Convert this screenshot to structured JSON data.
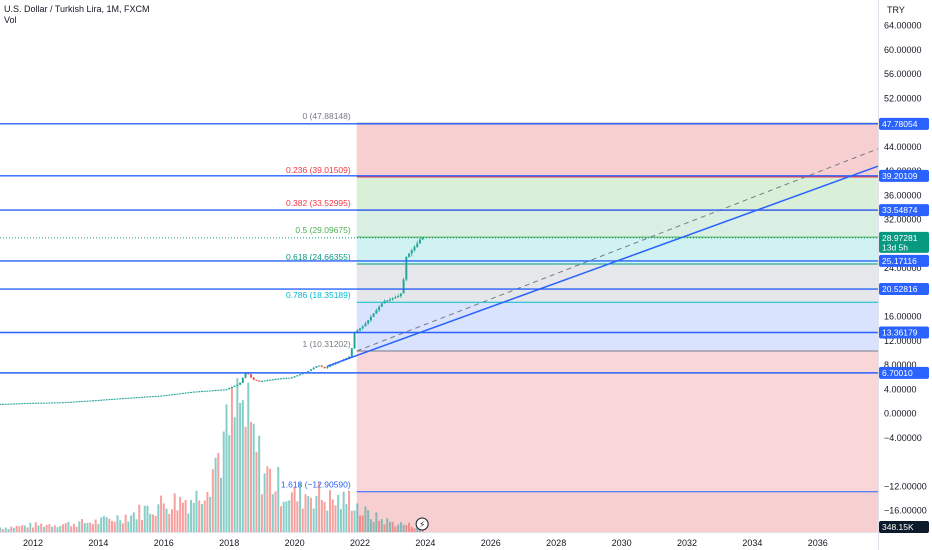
{
  "legend": {
    "title": "U.S. Dollar / Turkish Lira, 1M, FXCM",
    "volume_label": "Vol"
  },
  "currency_label": "TRY",
  "colors": {
    "up": "#26a69a",
    "down": "#ef5350",
    "hline": "#2962ff",
    "trend": "#2962ff",
    "dashed": "#787b86",
    "current_tag": "#089981",
    "volume_tag": "#0d1a2b"
  },
  "chart_data": {
    "type": "candlestick",
    "title": "U.S. Dollar / Turkish Lira, 1M, FXCM",
    "xlabel": "",
    "ylabel": "",
    "ylim": [
      -20,
      66
    ],
    "xlim": [
      2011.0,
      2038.0
    ],
    "grid": false,
    "y_ticks": [
      "64.00000",
      "60.00000",
      "56.00000",
      "52.00000",
      "44.00000",
      "40.00000",
      "36.00000",
      "32.00000",
      "24.00000",
      "16.00000",
      "12.00000",
      "8.00000",
      "4.00000",
      "0.00000",
      "−4.00000",
      "−12.00000",
      "−16.00000"
    ],
    "x_ticks": [
      "2012",
      "2014",
      "2016",
      "2018",
      "2020",
      "2022",
      "2024",
      "2026",
      "2028",
      "2030",
      "2032",
      "2034",
      "2036"
    ],
    "price_series": [
      [
        2011.0,
        1.55
      ],
      [
        2012.0,
        1.75
      ],
      [
        2013.0,
        1.85
      ],
      [
        2014.0,
        2.2
      ],
      [
        2015.0,
        2.6
      ],
      [
        2016.0,
        2.95
      ],
      [
        2017.0,
        3.6
      ],
      [
        2018.0,
        4.0
      ],
      [
        2018.4,
        4.9
      ],
      [
        2018.6,
        6.9
      ],
      [
        2018.8,
        5.6
      ],
      [
        2019.0,
        5.3
      ],
      [
        2019.5,
        5.7
      ],
      [
        2020.0,
        5.95
      ],
      [
        2020.5,
        7.0
      ],
      [
        2020.8,
        8.0
      ],
      [
        2021.0,
        7.5
      ],
      [
        2021.5,
        8.7
      ],
      [
        2021.8,
        9.5
      ],
      [
        2021.9,
        13.3
      ],
      [
        2022.2,
        14.5
      ],
      [
        2022.5,
        16.5
      ],
      [
        2022.8,
        18.5
      ],
      [
        2023.0,
        18.8
      ],
      [
        2023.3,
        19.5
      ],
      [
        2023.4,
        20.4
      ],
      [
        2023.45,
        25.5
      ],
      [
        2023.6,
        26.5
      ],
      [
        2023.8,
        27.8
      ],
      [
        2023.95,
        28.97
      ]
    ],
    "volume_series": [
      [
        2011.2,
        0.4
      ],
      [
        2012.0,
        0.6
      ],
      [
        2013.0,
        0.7
      ],
      [
        2014.0,
        0.9
      ],
      [
        2015.0,
        1.5
      ],
      [
        2016.0,
        2.5
      ],
      [
        2017.0,
        3.0
      ],
      [
        2017.9,
        8.0
      ],
      [
        2018.3,
        11.0
      ],
      [
        2018.6,
        9.0
      ],
      [
        2019.0,
        5.5
      ],
      [
        2019.5,
        4.0
      ],
      [
        2020.0,
        3.0
      ],
      [
        2020.5,
        3.5
      ],
      [
        2021.0,
        2.8
      ],
      [
        2021.5,
        2.6
      ],
      [
        2021.8,
        3.0
      ],
      [
        2022.0,
        1.8
      ],
      [
        2022.5,
        1.2
      ],
      [
        2023.0,
        0.8
      ],
      [
        2023.5,
        0.6
      ],
      [
        2023.9,
        0.4
      ]
    ],
    "current_price": "28.97281",
    "current_countdown": "13d 5h",
    "volume_value": "348.15K",
    "horizontal_lines": [
      {
        "value": 47.78054,
        "label": "47.78054"
      },
      {
        "value": 39.20109,
        "label": "39.20109"
      },
      {
        "value": 33.54874,
        "label": "33.54874"
      },
      {
        "value": 25.17116,
        "label": "25.17116"
      },
      {
        "value": 20.52816,
        "label": "20.52816"
      },
      {
        "value": 13.36179,
        "label": "13.36179"
      },
      {
        "value": 6.7001,
        "label": "6.70010"
      }
    ],
    "fib_levels": [
      {
        "ratio": "0",
        "value": 47.88148,
        "label": "0 (47.88148)",
        "color": "#787b86",
        "fill": "#f8cfd1"
      },
      {
        "ratio": "0.236",
        "value": 39.01509,
        "label": "0.236 (39.01509)",
        "color": "#f23645",
        "fill": "#fde4c0"
      },
      {
        "ratio": "0.382",
        "value": 33.52995,
        "label": "0.382 (33.52995)",
        "color": "#f23645",
        "fill": "#d4ecd0"
      },
      {
        "ratio": "0.5",
        "value": 29.09675,
        "label": "0.5 (29.09675)",
        "color": "#4caf50",
        "fill": "#d2ecdf"
      },
      {
        "ratio": "0.618",
        "value": 24.66355,
        "label": "0.618 (24.66355)",
        "color": "#089981",
        "fill": "#c9f0f0"
      },
      {
        "ratio": "0.786",
        "value": 18.35189,
        "label": "0.786 (18.35189)",
        "color": "#00bcd4",
        "fill": "#e1e3e6"
      },
      {
        "ratio": "1",
        "value": 10.31202,
        "label": "1 (10.31202)",
        "color": "#787b86",
        "fill": "#d3defd"
      },
      {
        "ratio": "1.618",
        "value": -12.9059,
        "label": "1.618 (−12.90590)",
        "color": "#2962ff",
        "fill": "#f8cfd1"
      }
    ],
    "fib_start_x": 2021.9,
    "trendline": [
      [
        2021.0,
        7.8
      ],
      [
        2038.0,
        42.0
      ]
    ],
    "dashed_line": [
      [
        2021.9,
        10.3
      ],
      [
        2038.0,
        44.0
      ]
    ]
  }
}
